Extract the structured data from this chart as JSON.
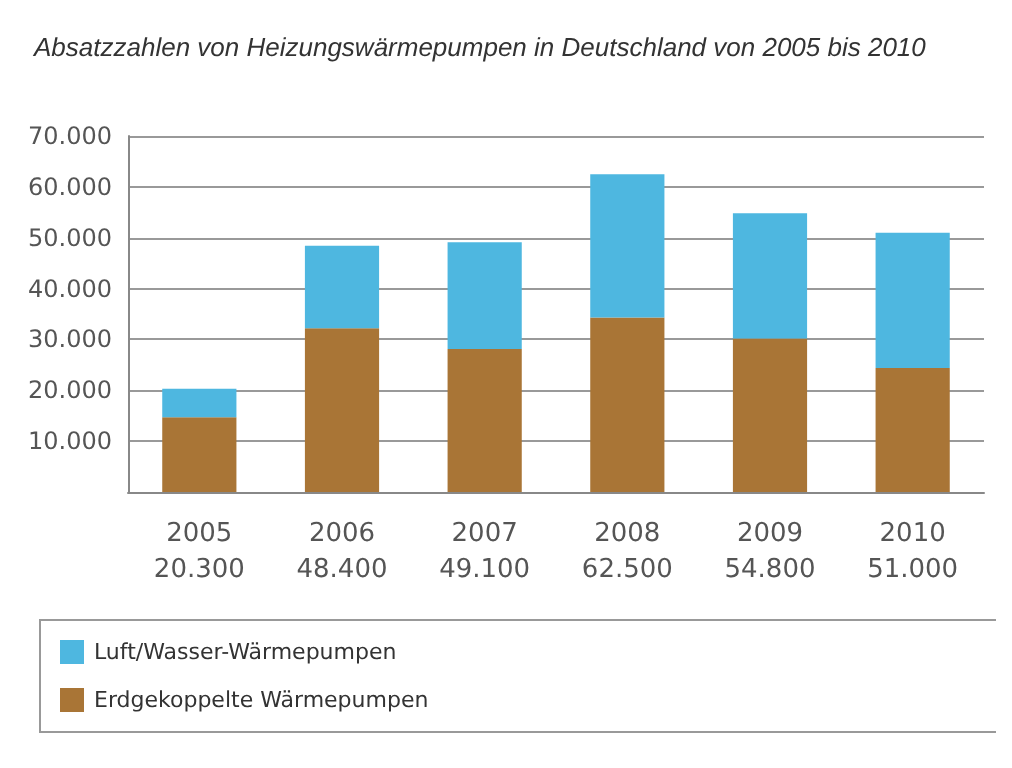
{
  "chart_data": {
    "type": "bar",
    "title": "Absatzzahlen von Heizungswärmepumpen in Deutschland von 2005 bis 2010",
    "categories": [
      "2005",
      "2006",
      "2007",
      "2008",
      "2009",
      "2010"
    ],
    "stacked": true,
    "series": [
      {
        "name": "Erdgekoppelte Wärmepumpen",
        "color": "#a97536",
        "values": [
          14700,
          32200,
          28100,
          34300,
          30200,
          24400
        ]
      },
      {
        "name": "Luft/Wasser-Wärmepumpen",
        "color": "#4eb7e0",
        "values": [
          5600,
          16200,
          21000,
          28200,
          24600,
          26600
        ]
      }
    ],
    "totals": [
      "20.300",
      "48.400",
      "49.100",
      "62.500",
      "54.800",
      "51.000"
    ],
    "ylim": [
      0,
      70000
    ],
    "yticks": [
      {
        "value": 10000,
        "label": "10.000"
      },
      {
        "value": 20000,
        "label": "20.000"
      },
      {
        "value": 30000,
        "label": "30.000"
      },
      {
        "value": 40000,
        "label": "40.000"
      },
      {
        "value": 50000,
        "label": "50.000"
      },
      {
        "value": 60000,
        "label": "60.000"
      },
      {
        "value": 70000,
        "label": "70.000"
      }
    ],
    "grid": "y",
    "legend": "bottom"
  }
}
